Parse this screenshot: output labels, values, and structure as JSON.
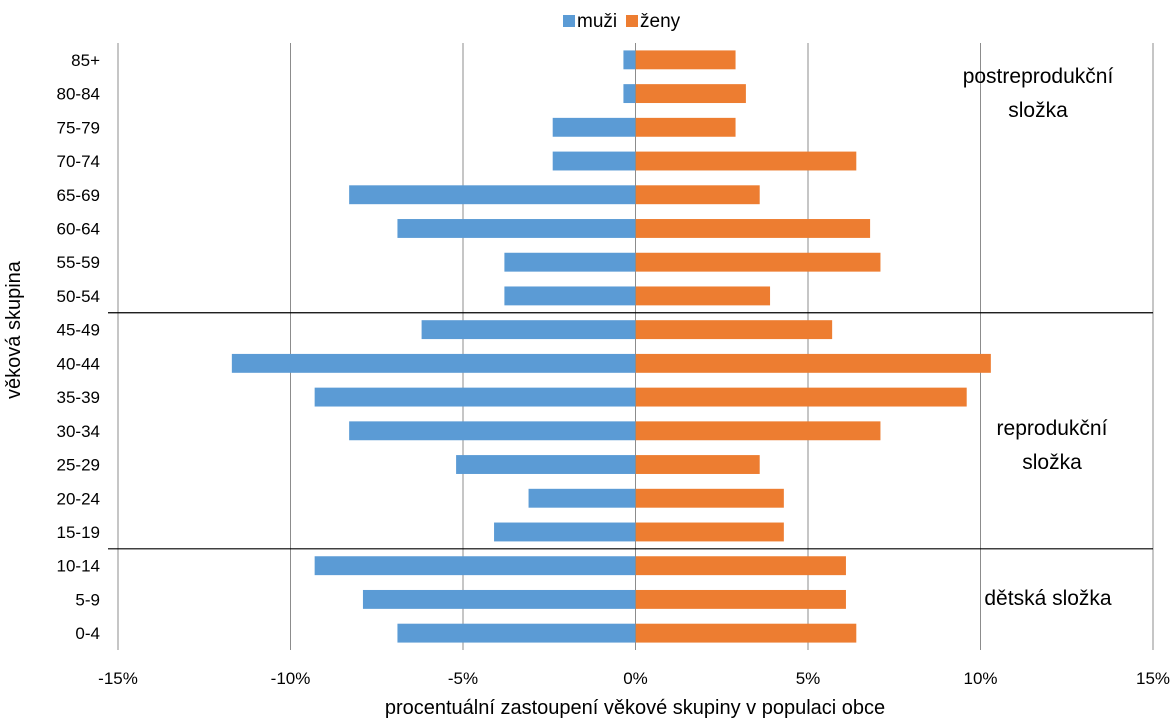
{
  "chart_data": {
    "type": "bar",
    "orientation": "horizontal",
    "categories": [
      "0-4",
      "5-9",
      "10-14",
      "15-19",
      "20-24",
      "25-29",
      "30-34",
      "35-39",
      "40-44",
      "45-49",
      "50-54",
      "55-59",
      "60-64",
      "65-69",
      "70-74",
      "75-79",
      "80-84",
      "85+"
    ],
    "series": [
      {
        "name": "muži",
        "color": "#5B9BD5",
        "values": [
          -6.9,
          -7.9,
          -9.3,
          -4.1,
          -3.1,
          -5.2,
          -8.3,
          -9.3,
          -11.7,
          -6.2,
          -3.8,
          -3.8,
          -6.9,
          -8.3,
          -2.4,
          -2.4,
          -0.35,
          -0.35
        ]
      },
      {
        "name": "ženy",
        "color": "#ED7D31",
        "values": [
          6.4,
          6.1,
          6.1,
          4.3,
          4.3,
          3.6,
          7.1,
          9.6,
          10.3,
          5.7,
          3.9,
          7.1,
          6.8,
          3.6,
          6.4,
          2.9,
          3.2,
          2.9
        ]
      }
    ],
    "xlim": [
      -15,
      15
    ],
    "xticks": [
      -15,
      -10,
      -5,
      0,
      5,
      10,
      15
    ],
    "xtick_labels": [
      "-15%",
      "-10%",
      "-5%",
      "0%",
      "5%",
      "10%",
      "15%"
    ],
    "xlabel": "procentuální zastoupení věkové skupiny v populaci obce",
    "ylabel": "věková skupina",
    "title": "",
    "grid": "vertical",
    "legend_position": "top-center",
    "separators_after_category": [
      "14",
      "49"
    ],
    "annotations": [
      {
        "lines": [
          "postreprodukční",
          "složka"
        ],
        "group": "50-85+"
      },
      {
        "lines": [
          "reprodukční",
          "složka"
        ],
        "group": "15-49"
      },
      {
        "lines": [
          "dětská složka"
        ],
        "group": "0-14"
      }
    ]
  }
}
